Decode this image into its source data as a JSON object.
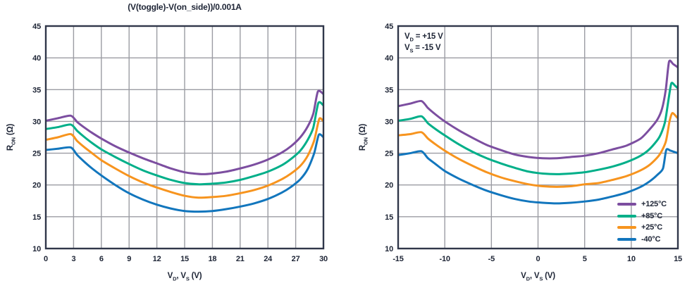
{
  "colors": {
    "background": "#ffffff",
    "frame": "#30374a",
    "grid": "#9b9ca3",
    "text": "#1d2435"
  },
  "chart_data": [
    {
      "type": "line",
      "title": "(V(toggle)-V(on_side))/0.001A",
      "xlabel": "VD, VS (V)",
      "ylabel": "RON (Ω)",
      "xlabel_segments": [
        {
          "t": "V"
        },
        {
          "t": "D",
          "sub": true
        },
        {
          "t": ", V"
        },
        {
          "t": "S",
          "sub": true
        },
        {
          "t": " (V)"
        }
      ],
      "ylabel_segments": [
        {
          "t": "R"
        },
        {
          "t": "ON",
          "sub": true
        },
        {
          "t": " (Ω)"
        }
      ],
      "xlim": [
        0,
        30
      ],
      "ylim": [
        10,
        45
      ],
      "xticks": [
        0,
        3,
        6,
        9,
        12,
        15,
        18,
        21,
        24,
        27,
        30
      ],
      "yticks": [
        10,
        15,
        20,
        25,
        30,
        35,
        40,
        45
      ],
      "grid": true,
      "legend": null,
      "series": [
        {
          "name": "+125°C",
          "key": "plus-125c",
          "color": "#7c4ea0",
          "x": [
            0,
            1.3,
            2.7,
            3.4,
            4.2,
            5,
            6,
            7.5,
            9,
            10.5,
            12,
            13.5,
            15,
            16,
            17,
            18,
            19.5,
            21,
            22.5,
            24,
            25.5,
            26.5,
            27.5,
            28.3,
            28.9,
            29.4,
            30
          ],
          "y": [
            30.1,
            30.5,
            30.9,
            29.9,
            29.0,
            28.2,
            27.3,
            26.1,
            25.1,
            24.2,
            23.4,
            22.6,
            22.0,
            21.8,
            21.7,
            21.8,
            22.1,
            22.6,
            23.2,
            24.0,
            25.1,
            26.1,
            27.5,
            29.2,
            31.2,
            34.7,
            34.3
          ]
        },
        {
          "name": "+85°C",
          "key": "plus-85c",
          "color": "#00af89",
          "x": [
            0,
            1.3,
            2.7,
            3.4,
            4.2,
            5,
            6,
            7.5,
            9,
            10.5,
            12,
            13.5,
            15,
            16.5,
            18,
            19.5,
            21,
            22.5,
            24,
            25.5,
            26.5,
            27.5,
            28.3,
            28.9,
            29.45,
            30
          ],
          "y": [
            28.8,
            29.1,
            29.5,
            28.5,
            27.5,
            26.6,
            25.6,
            24.4,
            23.3,
            22.3,
            21.5,
            20.8,
            20.3,
            20.1,
            20.2,
            20.4,
            20.8,
            21.4,
            22.1,
            23.1,
            24.1,
            25.4,
            27.1,
            29.0,
            32.9,
            32.5
          ]
        },
        {
          "name": "+25°C",
          "key": "plus-25c",
          "color": "#f7941e",
          "x": [
            0,
            1.3,
            2.7,
            3.4,
            4.2,
            5,
            6,
            7.5,
            9,
            10.5,
            12,
            13.5,
            15,
            16.5,
            18,
            19.5,
            21,
            22.5,
            24,
            25.5,
            26.5,
            27.5,
            28.3,
            29.0,
            29.55,
            30
          ],
          "y": [
            27.1,
            27.5,
            28.0,
            26.9,
            25.9,
            25.0,
            23.9,
            22.6,
            21.4,
            20.4,
            19.6,
            18.9,
            18.3,
            18.0,
            18.1,
            18.3,
            18.7,
            19.2,
            19.9,
            20.9,
            21.8,
            23.0,
            24.6,
            27.0,
            30.4,
            30.0
          ]
        },
        {
          "name": "-40°C",
          "key": "minus-40c",
          "color": "#1276bd",
          "x": [
            0,
            1.3,
            2.7,
            3.4,
            4.2,
            5,
            6,
            7.5,
            9,
            10.5,
            12,
            13.5,
            15,
            16.5,
            18,
            19.5,
            21,
            22.5,
            24,
            25.5,
            26.5,
            27.5,
            28.3,
            29.0,
            29.5,
            30
          ],
          "y": [
            25.5,
            25.7,
            25.9,
            24.7,
            23.6,
            22.6,
            21.5,
            20.0,
            18.7,
            17.7,
            16.9,
            16.3,
            15.9,
            15.8,
            15.9,
            16.2,
            16.6,
            17.1,
            17.8,
            18.8,
            19.7,
            20.9,
            22.5,
            25.0,
            27.9,
            27.5
          ]
        }
      ]
    },
    {
      "type": "line",
      "title": "",
      "xlabel": "VD, VS (V)",
      "ylabel": "RON (Ω)",
      "xlabel_segments": [
        {
          "t": "V"
        },
        {
          "t": "D",
          "sub": true
        },
        {
          "t": ", V"
        },
        {
          "t": "S",
          "sub": true
        },
        {
          "t": " (V)"
        }
      ],
      "ylabel_segments": [
        {
          "t": "R"
        },
        {
          "t": "ON",
          "sub": true
        },
        {
          "t": " (Ω)"
        }
      ],
      "annotation": [
        "VD = +15 V",
        "VS = -15 V"
      ],
      "annotation_segments": [
        [
          {
            "t": "V"
          },
          {
            "t": "D",
            "sub": true
          },
          {
            "t": " = +15 V"
          }
        ],
        [
          {
            "t": "V"
          },
          {
            "t": "S",
            "sub": true
          },
          {
            "t": " = -15 V"
          }
        ]
      ],
      "xlim": [
        -15,
        15
      ],
      "ylim": [
        10,
        45
      ],
      "xticks": [
        -15,
        -10,
        -5,
        0,
        5,
        10,
        15
      ],
      "yticks": [
        10,
        15,
        20,
        25,
        30,
        35,
        40,
        45
      ],
      "grid": true,
      "legend": {
        "position": "lower right",
        "entries": [
          "+125°C",
          "+85°C",
          "+25°C",
          "-40°C"
        ]
      },
      "series": [
        {
          "name": "+125°C",
          "key": "plus-125c",
          "color": "#7c4ea0",
          "x": [
            -15,
            -13.7,
            -12.5,
            -11.8,
            -11,
            -10,
            -8.5,
            -7,
            -5.5,
            -4,
            -2.5,
            -1,
            0.5,
            2,
            3.5,
            5,
            6.5,
            8,
            9.5,
            11,
            12,
            12.8,
            13.3,
            13.7,
            14.05,
            14.5,
            15
          ],
          "y": [
            32.4,
            32.8,
            33.2,
            32.1,
            31.1,
            30.0,
            28.6,
            27.4,
            26.3,
            25.5,
            24.8,
            24.4,
            24.2,
            24.2,
            24.4,
            24.6,
            25.0,
            25.6,
            26.2,
            27.3,
            28.8,
            30.3,
            32.0,
            35.0,
            39.4,
            39.0,
            38.5
          ]
        },
        {
          "name": "+85°C",
          "key": "plus-85c",
          "color": "#00af89",
          "x": [
            -15,
            -13.7,
            -12.5,
            -11.8,
            -11,
            -10,
            -8.5,
            -7,
            -5.5,
            -4,
            -2.5,
            -1,
            0.5,
            2,
            3.5,
            5,
            6.5,
            8,
            9.5,
            11,
            12,
            13,
            13.6,
            14.0,
            14.3,
            14.7,
            15
          ],
          "y": [
            30.1,
            30.4,
            30.8,
            29.7,
            28.8,
            27.8,
            26.4,
            25.2,
            24.2,
            23.4,
            22.7,
            22.1,
            21.8,
            21.7,
            21.8,
            22.0,
            22.4,
            22.9,
            23.6,
            24.6,
            25.7,
            27.5,
            29.8,
            33.5,
            36.0,
            35.6,
            35.2
          ]
        },
        {
          "name": "+25°C",
          "key": "plus-25c",
          "color": "#f7941e",
          "x": [
            -15,
            -13.7,
            -12.5,
            -11.8,
            -11,
            -10,
            -8.5,
            -7,
            -5.5,
            -4,
            -2.5,
            -1,
            0.5,
            2,
            3.5,
            5,
            6.5,
            8,
            9.5,
            11,
            12,
            13,
            13.7,
            14.1,
            14.4,
            14.8,
            15
          ],
          "y": [
            27.8,
            28.0,
            28.3,
            27.3,
            26.4,
            25.4,
            24.1,
            23.0,
            22.0,
            21.2,
            20.6,
            20.1,
            19.8,
            19.7,
            19.8,
            20.1,
            20.3,
            20.8,
            21.4,
            22.3,
            23.2,
            24.7,
            26.8,
            30.0,
            31.3,
            30.8,
            30.5
          ]
        },
        {
          "name": "-40°C",
          "key": "minus-40c",
          "color": "#1276bd",
          "x": [
            -15,
            -13.7,
            -12.5,
            -11.8,
            -11,
            -10,
            -8.5,
            -7,
            -5.5,
            -4,
            -2.5,
            -1,
            0.5,
            2,
            3.5,
            5,
            6.5,
            8,
            9.5,
            11,
            12,
            12.8,
            13.4,
            13.75,
            14.2,
            14.6,
            15
          ],
          "y": [
            24.7,
            25.0,
            25.3,
            24.2,
            23.3,
            22.2,
            21.0,
            20.0,
            19.1,
            18.4,
            17.8,
            17.4,
            17.2,
            17.1,
            17.2,
            17.4,
            17.7,
            18.2,
            18.8,
            19.7,
            20.6,
            21.6,
            22.6,
            25.5,
            25.4,
            25.2,
            25.0
          ]
        }
      ]
    }
  ]
}
